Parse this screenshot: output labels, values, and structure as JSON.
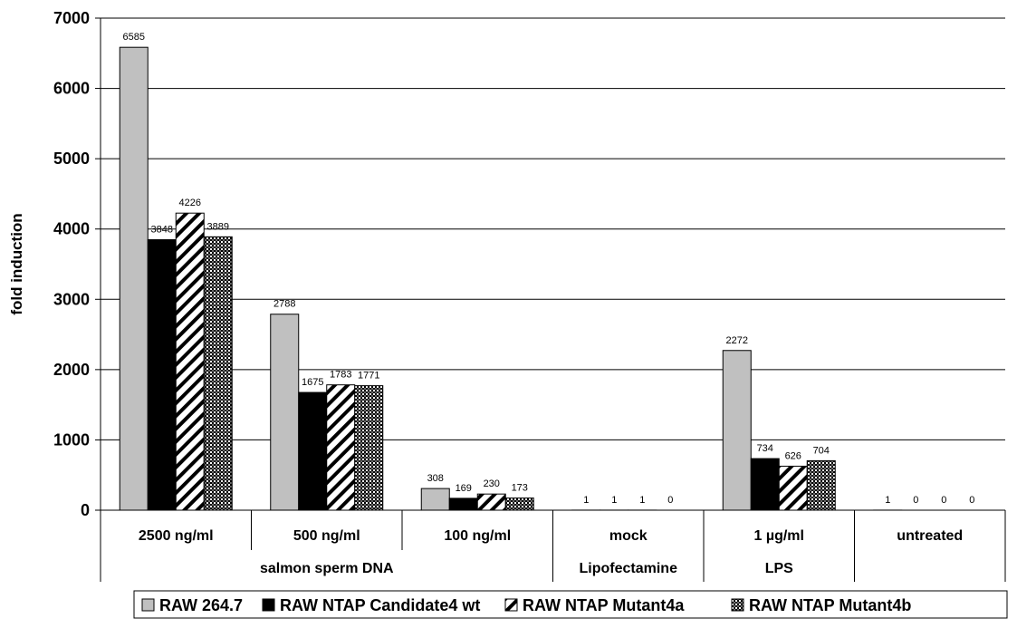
{
  "chart_data": {
    "type": "bar",
    "ylabel": "fold induction",
    "xlabel": "",
    "title": "",
    "ylim": [
      0,
      7000
    ],
    "yticks": [
      0,
      1000,
      2000,
      3000,
      4000,
      5000,
      6000,
      7000
    ],
    "grid": "horizontal",
    "legend_position": "bottom",
    "categories": [
      "2500 ng/ml",
      "500 ng/ml",
      "100 ng/ml",
      "mock",
      "1 µg/ml",
      "untreated"
    ],
    "groups": [
      {
        "label": "salmon sperm DNA",
        "span": [
          0,
          2
        ]
      },
      {
        "label": "Lipofectamine",
        "span": [
          3,
          3
        ]
      },
      {
        "label": "LPS",
        "span": [
          4,
          4
        ]
      },
      {
        "label": "",
        "span": [
          5,
          5
        ]
      }
    ],
    "series": [
      {
        "name": "RAW 264.7",
        "pattern": "gray",
        "color": "#c0c0c0",
        "values": [
          6585,
          2788,
          308,
          1,
          2272,
          1
        ]
      },
      {
        "name": "RAW NTAP Candidate4 wt",
        "pattern": "black",
        "color": "#000000",
        "values": [
          3848,
          1675,
          169,
          1,
          734,
          0
        ]
      },
      {
        "name": "RAW NTAP Mutant4a",
        "pattern": "diagonal",
        "color": "#ffffff",
        "values": [
          4226,
          1783,
          230,
          1,
          626,
          0
        ]
      },
      {
        "name": "RAW NTAP Mutant4b",
        "pattern": "dots",
        "color": "#555555",
        "values": [
          3889,
          1771,
          173,
          0,
          704,
          0
        ]
      }
    ]
  }
}
